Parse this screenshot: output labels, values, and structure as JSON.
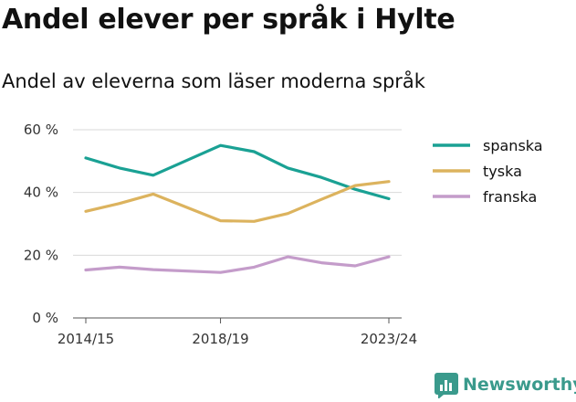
{
  "title": "Andel elever per språk i Hylte",
  "subtitle": "Andel av eleverna som läser moderna språk",
  "brand": {
    "name": "Newsworthy",
    "icon": "newsworthy-logo-icon",
    "color": "#3a9a8c"
  },
  "chart_data": {
    "type": "line",
    "title": "Andel elever per språk i Hylte",
    "subtitle": "Andel av eleverna som läser moderna språk",
    "xlabel": "",
    "ylabel": "",
    "x": [
      "2014/15",
      "2015/16",
      "2016/17",
      "2017/18",
      "2018/19",
      "2019/20",
      "2020/21",
      "2021/22",
      "2022/23",
      "2023/24"
    ],
    "x_tick_labels": [
      "2014/15",
      "2018/19",
      "2023/24"
    ],
    "y_ticks": [
      0,
      20,
      40,
      60
    ],
    "y_tick_labels": [
      "0 %",
      "20 %",
      "40 %",
      "60 %"
    ],
    "ylim": [
      0,
      60
    ],
    "grid": true,
    "legend_position": "right",
    "series": [
      {
        "name": "spanska",
        "color": "#1aa194",
        "values": [
          51,
          47.8,
          45.5,
          null,
          55,
          53,
          47.8,
          44.8,
          41,
          38
        ]
      },
      {
        "name": "tyska",
        "color": "#dcb35e",
        "values": [
          34,
          36.5,
          39.5,
          null,
          31,
          30.8,
          33.3,
          37.8,
          42.2,
          43.5
        ]
      },
      {
        "name": "franska",
        "color": "#c49cca",
        "values": [
          15.3,
          16.2,
          15.4,
          null,
          14.5,
          16.2,
          19.5,
          17.6,
          16.6,
          19.5
        ]
      }
    ]
  }
}
